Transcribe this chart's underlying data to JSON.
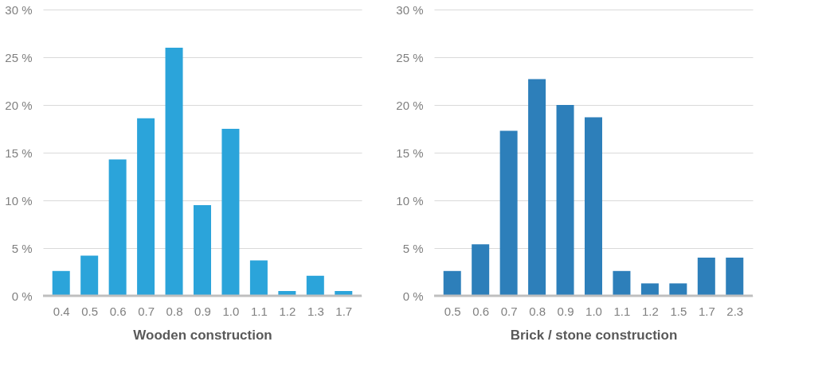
{
  "chart_data": [
    {
      "type": "bar",
      "xlabel": "Wooden construction",
      "categories": [
        "0.4",
        "0.5",
        "0.6",
        "0.7",
        "0.8",
        "0.9",
        "1.0",
        "1.1",
        "1.2",
        "1.3",
        "1.7"
      ],
      "series": [
        {
          "color": "#2ba4da",
          "values": [
            2.6,
            4.2,
            14.3,
            18.6,
            26.0,
            9.5,
            17.5,
            3.7,
            0.5,
            2.1,
            0.5
          ]
        }
      ],
      "ylim": [
        0,
        30
      ],
      "yticks": [
        {
          "value": 0,
          "label": "0 %"
        },
        {
          "value": 5,
          "label": "5 %"
        },
        {
          "value": 10,
          "label": "10 %"
        },
        {
          "value": 15,
          "label": "15 %"
        },
        {
          "value": 20,
          "label": "20 %"
        },
        {
          "value": 25,
          "label": "25 %"
        },
        {
          "value": 30,
          "label": "30 %"
        }
      ],
      "grid": "y"
    },
    {
      "type": "bar",
      "xlabel": "Brick / stone construction",
      "categories": [
        "0.5",
        "0.6",
        "0.7",
        "0.8",
        "0.9",
        "1.0",
        "1.1",
        "1.2",
        "1.5",
        "1.7",
        "2.3"
      ],
      "series": [
        {
          "color": "#2d7fba",
          "values": [
            2.6,
            5.4,
            17.3,
            22.7,
            20.0,
            18.7,
            2.6,
            1.3,
            1.3,
            4.0,
            4.0
          ]
        }
      ],
      "ylim": [
        0,
        30
      ],
      "yticks": [
        {
          "value": 0,
          "label": "0 %"
        },
        {
          "value": 5,
          "label": "5 %"
        },
        {
          "value": 10,
          "label": "10 %"
        },
        {
          "value": 15,
          "label": "15 %"
        },
        {
          "value": 20,
          "label": "20 %"
        },
        {
          "value": 25,
          "label": "25 %"
        },
        {
          "value": 30,
          "label": "30 %"
        }
      ],
      "grid": "y"
    }
  ]
}
